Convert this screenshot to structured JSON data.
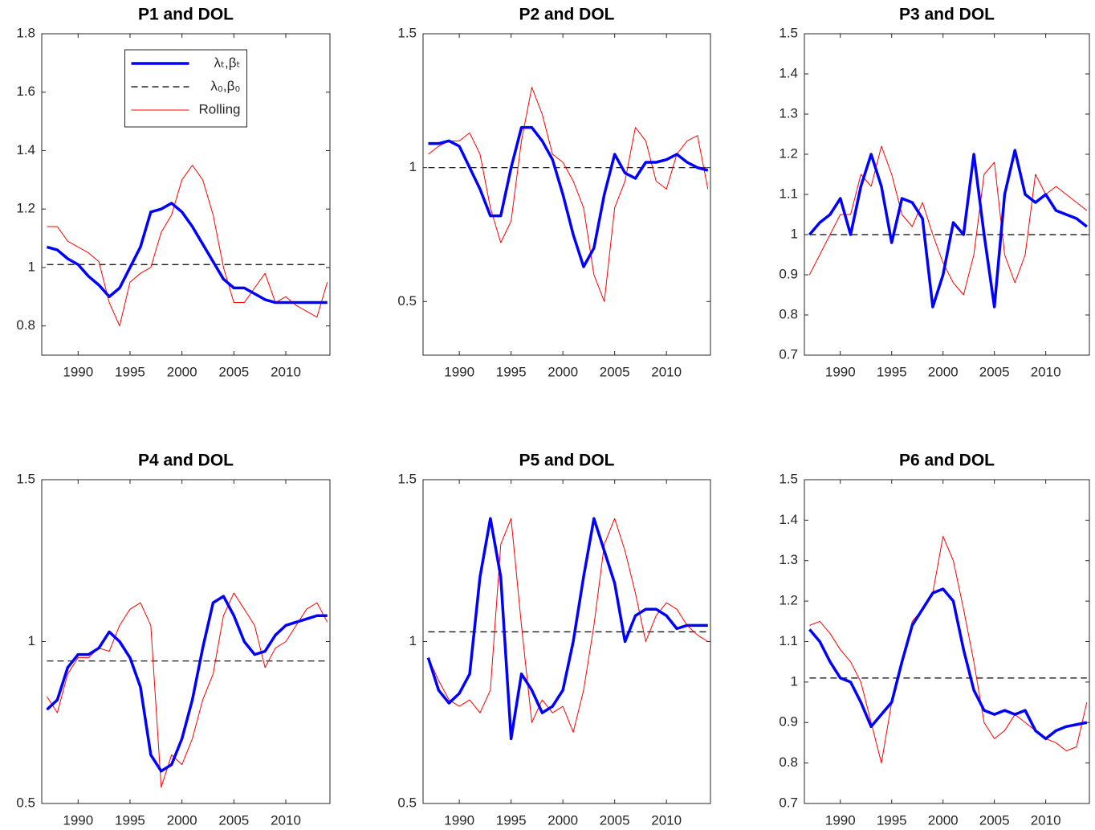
{
  "chart_data": [
    {
      "type": "line",
      "title": "P1 and DOL",
      "legend": "north",
      "x": [
        1987,
        1988,
        1989,
        1990,
        1991,
        1992,
        1993,
        1994,
        1995,
        1996,
        1997,
        1998,
        1999,
        2000,
        2001,
        2002,
        2003,
        2004,
        2005,
        2006,
        2007,
        2008,
        2009,
        2010,
        2011,
        2012,
        2013,
        2014
      ],
      "xlim": [
        1986.5,
        2014.25
      ],
      "xticks": [
        1990,
        1995,
        2000,
        2005,
        2010
      ],
      "ylim": [
        0.7,
        1.8
      ],
      "yticks": [
        0.8,
        1,
        1.2,
        1.4,
        1.6,
        1.8
      ],
      "series": [
        {
          "name": "λₜ,βₜ",
          "color": "#0000ff",
          "linewidth": 3.5,
          "values": [
            1.07,
            1.06,
            1.03,
            1.01,
            0.97,
            0.94,
            0.9,
            0.93,
            1.0,
            1.07,
            1.19,
            1.2,
            1.22,
            1.19,
            1.14,
            1.08,
            1.02,
            0.96,
            0.93,
            0.93,
            0.91,
            0.89,
            0.88,
            0.88,
            0.88,
            0.88,
            0.88,
            0.88
          ]
        },
        {
          "name": "λ₀,β₀",
          "color": "#000000",
          "linewidth": 1.2,
          "dashed": true,
          "values": [
            1.01,
            1.01,
            1.01,
            1.01,
            1.01,
            1.01,
            1.01,
            1.01,
            1.01,
            1.01,
            1.01,
            1.01,
            1.01,
            1.01,
            1.01,
            1.01,
            1.01,
            1.01,
            1.01,
            1.01,
            1.01,
            1.01,
            1.01,
            1.01,
            1.01,
            1.01,
            1.01,
            1.01
          ]
        },
        {
          "name": "Rolling",
          "color": "#ff0000",
          "linewidth": 1,
          "values": [
            1.14,
            1.14,
            1.09,
            1.07,
            1.05,
            1.02,
            0.88,
            0.8,
            0.95,
            0.98,
            1.0,
            1.12,
            1.18,
            1.3,
            1.35,
            1.3,
            1.18,
            1.0,
            0.88,
            0.88,
            0.93,
            0.98,
            0.88,
            0.9,
            0.87,
            0.85,
            0.83,
            0.95
          ]
        }
      ]
    },
    {
      "type": "line",
      "title": "P2 and DOL",
      "x": [
        1987,
        1988,
        1989,
        1990,
        1991,
        1992,
        1993,
        1994,
        1995,
        1996,
        1997,
        1998,
        1999,
        2000,
        2001,
        2002,
        2003,
        2004,
        2005,
        2006,
        2007,
        2008,
        2009,
        2010,
        2011,
        2012,
        2013,
        2014
      ],
      "xlim": [
        1986.5,
        2014.25
      ],
      "xticks": [
        1990,
        1995,
        2000,
        2005,
        2010
      ],
      "ylim": [
        0.3,
        1.5
      ],
      "yticks": [
        0.5,
        1,
        1.5
      ],
      "series": [
        {
          "color": "#0000ff",
          "linewidth": 3.5,
          "values": [
            1.09,
            1.09,
            1.1,
            1.08,
            1.0,
            0.92,
            0.82,
            0.82,
            1.0,
            1.15,
            1.15,
            1.1,
            1.03,
            0.9,
            0.75,
            0.63,
            0.7,
            0.9,
            1.05,
            0.98,
            0.96,
            1.02,
            1.02,
            1.03,
            1.05,
            1.02,
            1.0,
            0.99
          ]
        },
        {
          "color": "#000000",
          "linewidth": 1.2,
          "dashed": true,
          "values": [
            1,
            1,
            1,
            1,
            1,
            1,
            1,
            1,
            1,
            1,
            1,
            1,
            1,
            1,
            1,
            1,
            1,
            1,
            1,
            1,
            1,
            1,
            1,
            1,
            1,
            1,
            1,
            1
          ]
        },
        {
          "color": "#ff0000",
          "linewidth": 1,
          "values": [
            1.05,
            1.08,
            1.1,
            1.1,
            1.13,
            1.05,
            0.85,
            0.72,
            0.8,
            1.1,
            1.3,
            1.2,
            1.05,
            1.02,
            0.95,
            0.85,
            0.6,
            0.5,
            0.85,
            0.95,
            1.15,
            1.1,
            0.95,
            0.92,
            1.05,
            1.1,
            1.12,
            0.92
          ]
        }
      ]
    },
    {
      "type": "line",
      "title": "P3 and DOL",
      "x": [
        1987,
        1988,
        1989,
        1990,
        1991,
        1992,
        1993,
        1994,
        1995,
        1996,
        1997,
        1998,
        1999,
        2000,
        2001,
        2002,
        2003,
        2004,
        2005,
        2006,
        2007,
        2008,
        2009,
        2010,
        2011,
        2012,
        2013,
        2014
      ],
      "xlim": [
        1986.5,
        2014.25
      ],
      "xticks": [
        1990,
        1995,
        2000,
        2005,
        2010
      ],
      "ylim": [
        0.7,
        1.5
      ],
      "yticks": [
        0.7,
        0.8,
        0.9,
        1,
        1.1,
        1.2,
        1.3,
        1.4,
        1.5
      ],
      "series": [
        {
          "color": "#0000ff",
          "linewidth": 3.5,
          "values": [
            1.0,
            1.03,
            1.05,
            1.09,
            1.0,
            1.12,
            1.2,
            1.12,
            0.98,
            1.09,
            1.08,
            1.04,
            0.82,
            0.9,
            1.03,
            1.0,
            1.2,
            1.0,
            0.82,
            1.1,
            1.21,
            1.1,
            1.08,
            1.1,
            1.06,
            1.05,
            1.04,
            1.02
          ]
        },
        {
          "color": "#000000",
          "linewidth": 1.2,
          "dashed": true,
          "values": [
            1,
            1,
            1,
            1,
            1,
            1,
            1,
            1,
            1,
            1,
            1,
            1,
            1,
            1,
            1,
            1,
            1,
            1,
            1,
            1,
            1,
            1,
            1,
            1,
            1,
            1,
            1,
            1
          ]
        },
        {
          "color": "#ff0000",
          "linewidth": 1,
          "values": [
            0.9,
            0.95,
            1.0,
            1.05,
            1.05,
            1.15,
            1.12,
            1.22,
            1.15,
            1.05,
            1.02,
            1.08,
            1.0,
            0.93,
            0.88,
            0.85,
            0.95,
            1.15,
            1.18,
            0.95,
            0.88,
            0.95,
            1.15,
            1.1,
            1.12,
            1.1,
            1.08,
            1.06
          ]
        }
      ]
    },
    {
      "type": "line",
      "title": "P4 and DOL",
      "x": [
        1987,
        1988,
        1989,
        1990,
        1991,
        1992,
        1993,
        1994,
        1995,
        1996,
        1997,
        1998,
        1999,
        2000,
        2001,
        2002,
        2003,
        2004,
        2005,
        2006,
        2007,
        2008,
        2009,
        2010,
        2011,
        2012,
        2013,
        2014
      ],
      "xlim": [
        1986.5,
        2014.25
      ],
      "xticks": [
        1990,
        1995,
        2000,
        2005,
        2010
      ],
      "ylim": [
        0.5,
        1.5
      ],
      "yticks": [
        0.5,
        1,
        1.5
      ],
      "series": [
        {
          "color": "#0000ff",
          "linewidth": 3.5,
          "values": [
            0.79,
            0.82,
            0.92,
            0.96,
            0.96,
            0.98,
            1.03,
            1.0,
            0.95,
            0.86,
            0.65,
            0.6,
            0.62,
            0.7,
            0.82,
            0.98,
            1.12,
            1.14,
            1.08,
            1.0,
            0.96,
            0.97,
            1.02,
            1.05,
            1.06,
            1.07,
            1.08,
            1.08
          ]
        },
        {
          "color": "#000000",
          "linewidth": 1.2,
          "dashed": true,
          "values": [
            0.94,
            0.94,
            0.94,
            0.94,
            0.94,
            0.94,
            0.94,
            0.94,
            0.94,
            0.94,
            0.94,
            0.94,
            0.94,
            0.94,
            0.94,
            0.94,
            0.94,
            0.94,
            0.94,
            0.94,
            0.94,
            0.94,
            0.94,
            0.94,
            0.94,
            0.94,
            0.94,
            0.94
          ]
        },
        {
          "color": "#ff0000",
          "linewidth": 1,
          "values": [
            0.83,
            0.78,
            0.9,
            0.95,
            0.95,
            0.98,
            0.97,
            1.05,
            1.1,
            1.12,
            1.05,
            0.55,
            0.65,
            0.62,
            0.7,
            0.82,
            0.9,
            1.08,
            1.15,
            1.1,
            1.05,
            0.92,
            0.98,
            1.0,
            1.05,
            1.1,
            1.12,
            1.06
          ]
        }
      ]
    },
    {
      "type": "line",
      "title": "P5 and DOL",
      "x": [
        1987,
        1988,
        1989,
        1990,
        1991,
        1992,
        1993,
        1994,
        1995,
        1996,
        1997,
        1998,
        1999,
        2000,
        2001,
        2002,
        2003,
        2004,
        2005,
        2006,
        2007,
        2008,
        2009,
        2010,
        2011,
        2012,
        2013,
        2014
      ],
      "xlim": [
        1986.5,
        2014.25
      ],
      "xticks": [
        1990,
        1995,
        2000,
        2005,
        2010
      ],
      "ylim": [
        0.5,
        1.5
      ],
      "yticks": [
        0.5,
        1,
        1.5
      ],
      "series": [
        {
          "color": "#0000ff",
          "linewidth": 3.5,
          "values": [
            0.95,
            0.85,
            0.81,
            0.84,
            0.9,
            1.2,
            1.38,
            1.2,
            0.7,
            0.9,
            0.85,
            0.78,
            0.8,
            0.85,
            1.0,
            1.2,
            1.38,
            1.28,
            1.18,
            1.0,
            1.08,
            1.1,
            1.1,
            1.08,
            1.04,
            1.05,
            1.05,
            1.05
          ]
        },
        {
          "color": "#000000",
          "linewidth": 1.2,
          "dashed": true,
          "values": [
            1.03,
            1.03,
            1.03,
            1.03,
            1.03,
            1.03,
            1.03,
            1.03,
            1.03,
            1.03,
            1.03,
            1.03,
            1.03,
            1.03,
            1.03,
            1.03,
            1.03,
            1.03,
            1.03,
            1.03,
            1.03,
            1.03,
            1.03,
            1.03,
            1.03,
            1.03,
            1.03,
            1.03
          ]
        },
        {
          "color": "#ff0000",
          "linewidth": 1,
          "values": [
            0.95,
            0.88,
            0.82,
            0.8,
            0.82,
            0.78,
            0.85,
            1.3,
            1.38,
            1.05,
            0.75,
            0.82,
            0.78,
            0.8,
            0.72,
            0.85,
            1.05,
            1.3,
            1.38,
            1.28,
            1.15,
            1.0,
            1.08,
            1.12,
            1.1,
            1.05,
            1.02,
            1.0
          ]
        }
      ]
    },
    {
      "type": "line",
      "title": "P6 and DOL",
      "x": [
        1987,
        1988,
        1989,
        1990,
        1991,
        1992,
        1993,
        1994,
        1995,
        1996,
        1997,
        1998,
        1999,
        2000,
        2001,
        2002,
        2003,
        2004,
        2005,
        2006,
        2007,
        2008,
        2009,
        2010,
        2011,
        2012,
        2013,
        2014
      ],
      "xlim": [
        1986.5,
        2014.25
      ],
      "xticks": [
        1990,
        1995,
        2000,
        2005,
        2010
      ],
      "ylim": [
        0.7,
        1.5
      ],
      "yticks": [
        0.7,
        0.8,
        0.9,
        1,
        1.1,
        1.2,
        1.3,
        1.4,
        1.5
      ],
      "series": [
        {
          "color": "#0000ff",
          "linewidth": 3.5,
          "values": [
            1.13,
            1.1,
            1.05,
            1.01,
            1.0,
            0.95,
            0.89,
            0.92,
            0.95,
            1.05,
            1.14,
            1.18,
            1.22,
            1.23,
            1.2,
            1.08,
            0.98,
            0.93,
            0.92,
            0.93,
            0.92,
            0.93,
            0.88,
            0.86,
            0.88,
            0.89,
            0.895,
            0.9
          ]
        },
        {
          "color": "#000000",
          "linewidth": 1.2,
          "dashed": true,
          "values": [
            1.01,
            1.01,
            1.01,
            1.01,
            1.01,
            1.01,
            1.01,
            1.01,
            1.01,
            1.01,
            1.01,
            1.01,
            1.01,
            1.01,
            1.01,
            1.01,
            1.01,
            1.01,
            1.01,
            1.01,
            1.01,
            1.01,
            1.01,
            1.01,
            1.01,
            1.01,
            1.01,
            1.01
          ]
        },
        {
          "color": "#ff0000",
          "linewidth": 1,
          "values": [
            1.14,
            1.15,
            1.12,
            1.08,
            1.05,
            1.0,
            0.9,
            0.8,
            0.95,
            1.05,
            1.15,
            1.18,
            1.22,
            1.36,
            1.3,
            1.18,
            1.05,
            0.9,
            0.86,
            0.88,
            0.92,
            0.9,
            0.88,
            0.86,
            0.85,
            0.83,
            0.84,
            0.95
          ]
        }
      ]
    }
  ]
}
